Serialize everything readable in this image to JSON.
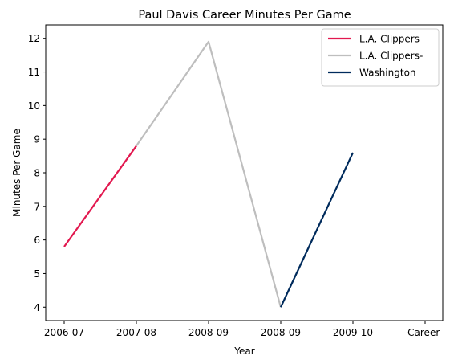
{
  "chart_data": {
    "type": "line",
    "title": "Paul Davis  Career Minutes Per Game",
    "xlabel": "Year",
    "ylabel": "Minutes Per Game",
    "x_tick_labels": [
      "2006-07",
      "2007-08",
      "2008-09",
      "2008-09",
      "2009-10",
      "Career-"
    ],
    "ylim": [
      3.6,
      12.4
    ],
    "y_ticks": [
      4,
      5,
      6,
      7,
      8,
      9,
      10,
      11,
      12
    ],
    "grid": false,
    "legend_position": "top-right",
    "series": [
      {
        "name": "L.A. Clippers",
        "color": "#e2184f",
        "points": [
          {
            "x": 0,
            "y": 5.8
          },
          {
            "x": 1.0,
            "y": 8.8
          }
        ]
      },
      {
        "name": "L.A. Clippers-",
        "color": "#bebebe",
        "points": [
          {
            "x": 1.0,
            "y": 8.8
          },
          {
            "x": 2.0,
            "y": 11.9
          },
          {
            "x": 3.0,
            "y": 4.0
          }
        ]
      },
      {
        "name": "Washington",
        "color": "#002b5c",
        "points": [
          {
            "x": 3.0,
            "y": 4.0
          },
          {
            "x": 4.0,
            "y": 8.6
          }
        ]
      }
    ]
  }
}
